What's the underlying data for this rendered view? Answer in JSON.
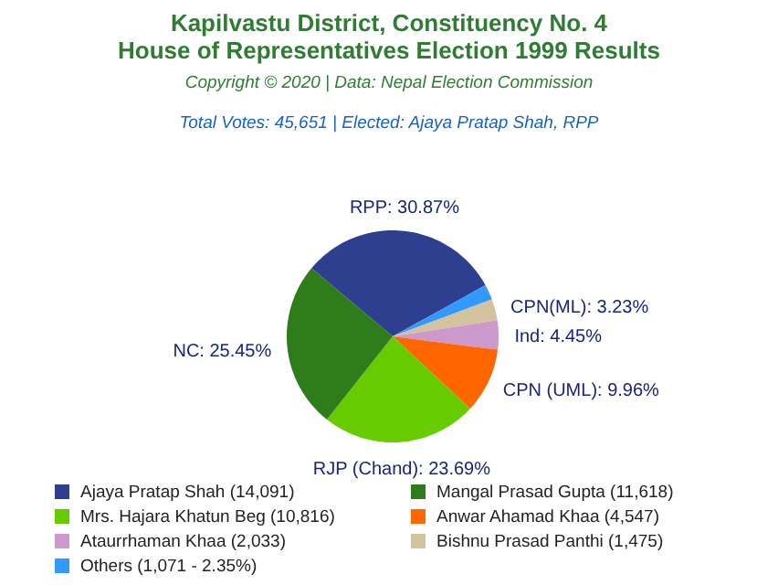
{
  "chart_data": {
    "type": "pie",
    "title": "Kapilvastu District, Constituency No. 4\nHouse of Representatives Election 1999 Results",
    "subtitle": "Copyright © 2020 | Data: Nepal Election Commission",
    "annotations": [
      "Total Votes: 45,651 | Elected: Ajaya Pratap Shah, RPP"
    ],
    "categories": [
      "Ajaya Pratap Shah (14,091)",
      "Others (1,071 - 2.35%)",
      "Bishnu Prasad Panthi (1,475)",
      "Ataurrhaman Khaa (2,033)",
      "Anwar Ahamad Khaa (4,547)",
      "Mrs. Hajara Khatun Beg (10,816)",
      "Mangal Prasad Gupta (11,618)"
    ],
    "values": [
      30.87,
      2.35,
      3.23,
      4.45,
      9.96,
      23.69,
      25.45
    ],
    "colors": [
      "#2e3f8f",
      "#3399ff",
      "#d2c29d",
      "#cc99cc",
      "#ff6600",
      "#66cc00",
      "#2e7d1a"
    ],
    "value_labels": [
      "RPP: 30.87%",
      null,
      "CPN(ML): 3.23%",
      "Ind: 4.45%",
      "CPN (UML): 9.96%",
      "RJP (Chand): 23.69%",
      "NC: 25.45%"
    ],
    "legend": "bottom"
  }
}
